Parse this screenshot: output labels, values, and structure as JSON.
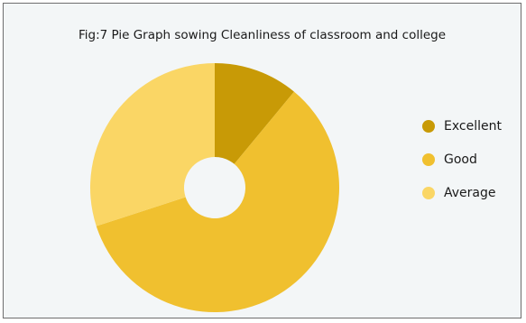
{
  "chart_data": {
    "type": "pie",
    "title": "Fig:7 Pie Graph sowing Cleanliness of classroom and college",
    "categories": [
      "Excellent",
      "Good",
      "Average"
    ],
    "values": [
      11,
      59,
      30
    ],
    "colors": [
      "#c89a06",
      "#f0c02f",
      "#fad665"
    ],
    "donut": true,
    "legend_position": "right",
    "background": "#f3f6f7"
  }
}
